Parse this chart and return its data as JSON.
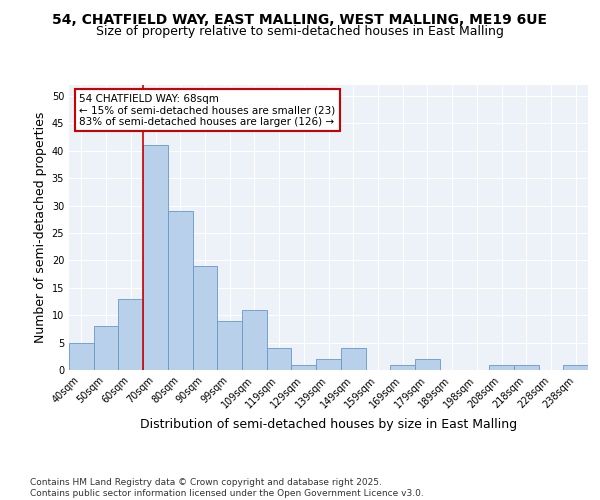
{
  "title1": "54, CHATFIELD WAY, EAST MALLING, WEST MALLING, ME19 6UE",
  "title2": "Size of property relative to semi-detached houses in East Malling",
  "xlabel": "Distribution of semi-detached houses by size in East Malling",
  "ylabel": "Number of semi-detached properties",
  "categories": [
    "40sqm",
    "50sqm",
    "60sqm",
    "70sqm",
    "80sqm",
    "90sqm",
    "99sqm",
    "109sqm",
    "119sqm",
    "129sqm",
    "139sqm",
    "149sqm",
    "159sqm",
    "169sqm",
    "179sqm",
    "189sqm",
    "198sqm",
    "208sqm",
    "218sqm",
    "228sqm",
    "238sqm"
  ],
  "values": [
    5,
    8,
    13,
    41,
    29,
    19,
    9,
    11,
    4,
    1,
    2,
    4,
    0,
    1,
    2,
    0,
    0,
    1,
    1,
    0,
    1
  ],
  "bar_color": "#b8d0ea",
  "bar_edge_color": "#6898c8",
  "vline_x_index": 3,
  "vline_color": "#cc0000",
  "annotation_title": "54 CHATFIELD WAY: 68sqm",
  "annotation_line1": "← 15% of semi-detached houses are smaller (23)",
  "annotation_line2": "83% of semi-detached houses are larger (126) →",
  "annotation_box_color": "#cc0000",
  "ylim": [
    0,
    52
  ],
  "yticks": [
    0,
    5,
    10,
    15,
    20,
    25,
    30,
    35,
    40,
    45,
    50
  ],
  "footer1": "Contains HM Land Registry data © Crown copyright and database right 2025.",
  "footer2": "Contains public sector information licensed under the Open Government Licence v3.0.",
  "bg_color": "#edf2f9",
  "grid_color": "#ffffff",
  "title_fontsize": 10,
  "subtitle_fontsize": 9,
  "axis_label_fontsize": 9,
  "tick_fontsize": 7,
  "annotation_fontsize": 7.5,
  "footer_fontsize": 6.5
}
